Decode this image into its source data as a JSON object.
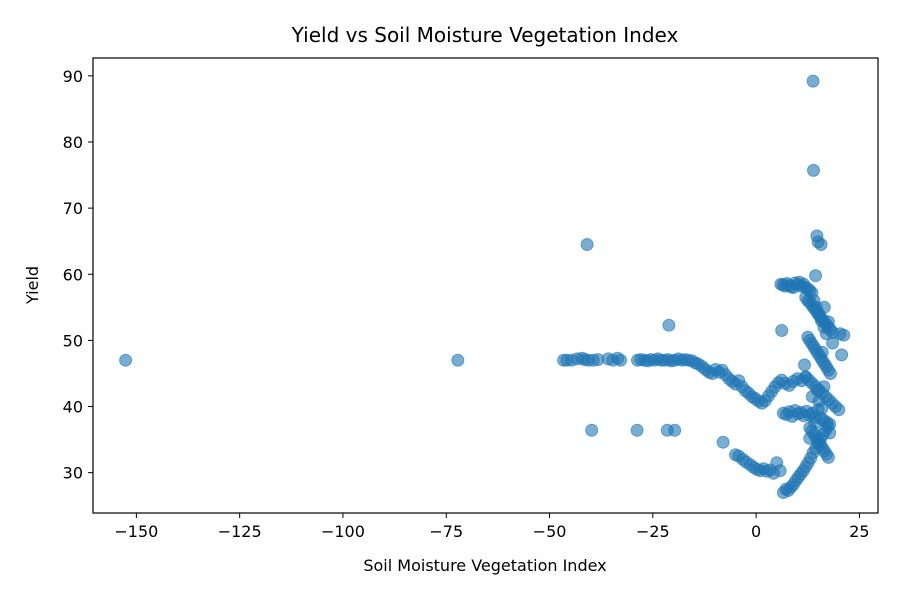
{
  "chart_data": {
    "type": "scatter",
    "title": "Yield vs Soil Moisture Vegetation Index",
    "xlabel": "Soil Moisture Vegetation Index",
    "ylabel": "Yield",
    "xlim": [
      -160.5,
      29.5
    ],
    "ylim": [
      23.9,
      92.7
    ],
    "xticks": [
      -150,
      -125,
      -100,
      -75,
      -50,
      -25,
      0,
      25
    ],
    "xtick_labels": [
      "−150",
      "−125",
      "−100",
      "−75",
      "−50",
      "−25",
      "0",
      "25"
    ],
    "yticks": [
      30,
      40,
      50,
      60,
      70,
      80,
      90
    ],
    "ytick_labels": [
      "30",
      "40",
      "50",
      "60",
      "70",
      "80",
      "90"
    ],
    "grid": false,
    "marker_color": "#1f77b4",
    "marker_alpha": 0.6,
    "x": [
      -152.6,
      -72.2,
      -46.6,
      -45.8,
      -44.6,
      -43.3,
      -42.1,
      -41.5,
      -40.6,
      -39.4,
      -38.3,
      -35.8,
      -34.7,
      -33.5,
      -32.8,
      -28.7,
      -27.9,
      -27.1,
      -26.3,
      -25.5,
      -24.6,
      -23.8,
      -23.0,
      -22.1,
      -21.3,
      -20.5,
      -19.7,
      -18.8,
      -18.0,
      -17.2,
      -16.4,
      -15.5,
      -14.7,
      -13.9,
      -13.0,
      -12.2,
      -11.4,
      -10.6,
      -9.8,
      -9.0,
      -8.2,
      -7.4,
      -6.6,
      -5.8,
      -5.0,
      -4.2,
      -3.4,
      -2.6,
      -1.8,
      -1.0,
      -0.2,
      0.6,
      1.4,
      2.2,
      3.0,
      3.8,
      4.6,
      5.4,
      6.2,
      7.0,
      8.0,
      9.0,
      10.0,
      11.0,
      12.0,
      -40.9,
      -21.1,
      6.2,
      -39.8,
      -28.8,
      -21.5,
      -19.7,
      -8.0,
      -5.0,
      -4.2,
      -3.2,
      -2.4,
      -1.4,
      -0.6,
      0.2,
      1.0,
      1.8,
      2.6,
      3.4,
      4.2,
      5.0,
      5.8,
      6.6,
      7.2,
      7.8,
      8.4,
      9.0,
      9.6,
      10.2,
      10.8,
      11.4,
      12.0,
      12.6,
      13.2,
      13.8,
      14.4,
      15.0,
      15.6,
      16.2,
      16.8,
      17.4,
      6.0,
      6.5,
      7.0,
      7.5,
      8.0,
      8.5,
      9.0,
      9.5,
      10.0,
      10.5,
      11.0,
      11.5,
      12.0,
      12.5,
      13.0,
      13.5,
      12.0,
      12.5,
      13.0,
      13.5,
      14.0,
      14.5,
      15.0,
      15.5,
      16.0,
      16.5,
      17.0,
      17.5,
      18.0,
      18.5,
      12.5,
      13.0,
      13.5,
      14.0,
      14.5,
      15.0,
      15.5,
      16.0,
      16.5,
      17.0,
      17.5,
      18.0,
      12.0,
      12.8,
      13.6,
      14.4,
      15.2,
      16.0,
      16.8,
      17.6,
      18.4,
      19.2,
      20.0,
      6.6,
      7.3,
      8.0,
      8.7,
      9.4,
      10.1,
      10.8,
      11.5,
      12.2,
      12.9,
      13.6,
      14.3,
      15.0,
      15.7,
      16.4,
      17.1,
      17.8,
      13.0,
      13.5,
      14.0,
      14.5,
      15.0,
      15.5,
      16.0,
      16.5,
      17.0,
      17.5,
      14.0,
      14.6,
      15.2,
      15.8,
      16.4,
      17.0,
      16.5,
      17.5,
      20.3,
      21.2,
      18.5,
      16.0,
      20.7,
      17.8,
      13.0,
      11.7,
      13.6,
      14.8,
      15.2,
      15.9,
      14.2,
      16.4,
      13.8,
      13.9,
      14.7,
      15.0,
      15.7,
      14.4
    ],
    "y": [
      47.0,
      47.0,
      47.0,
      47.0,
      47.0,
      47.2,
      47.3,
      47.1,
      47.0,
      47.0,
      47.1,
      47.2,
      47.0,
      47.3,
      47.0,
      47.0,
      47.1,
      47.0,
      46.9,
      47.1,
      47.0,
      47.2,
      47.0,
      47.0,
      47.1,
      46.9,
      47.0,
      47.2,
      47.0,
      47.1,
      47.0,
      46.9,
      46.6,
      46.4,
      46.0,
      45.6,
      45.2,
      45.0,
      45.6,
      45.2,
      45.5,
      44.8,
      44.2,
      43.8,
      43.4,
      43.9,
      43.0,
      42.4,
      42.0,
      41.5,
      41.2,
      40.8,
      40.5,
      40.9,
      41.6,
      42.3,
      43.0,
      43.6,
      44.0,
      43.5,
      43.2,
      43.8,
      44.2,
      43.9,
      44.4,
      64.5,
      52.3,
      51.5,
      36.4,
      36.4,
      36.4,
      36.4,
      34.6,
      32.7,
      32.5,
      32.0,
      31.6,
      31.2,
      30.8,
      30.5,
      30.3,
      30.6,
      30.2,
      30.4,
      29.9,
      31.5,
      30.3,
      27.0,
      27.5,
      27.3,
      27.8,
      28.2,
      28.8,
      29.3,
      29.8,
      30.3,
      30.9,
      31.5,
      32.2,
      33.0,
      33.7,
      34.4,
      35.1,
      35.8,
      36.4,
      37.0,
      58.5,
      58.4,
      58.2,
      58.6,
      58.3,
      58.1,
      58.0,
      58.7,
      58.4,
      58.8,
      58.2,
      58.5,
      58.0,
      57.8,
      57.5,
      57.2,
      56.5,
      56.0,
      55.8,
      55.3,
      54.9,
      54.5,
      54.0,
      53.6,
      53.2,
      52.8,
      52.4,
      52.0,
      51.6,
      51.2,
      50.5,
      50.0,
      49.5,
      49.0,
      48.5,
      48.0,
      47.5,
      47.0,
      46.5,
      46.0,
      45.5,
      45.0,
      44.5,
      44.0,
      43.5,
      43.0,
      42.5,
      42.0,
      41.5,
      41.0,
      40.5,
      40.0,
      39.5,
      39.0,
      38.8,
      39.2,
      38.5,
      39.4,
      38.9,
      39.1,
      38.6,
      39.3,
      38.7,
      39.0,
      38.4,
      39.5,
      38.2,
      37.9,
      37.6,
      37.3,
      36.8,
      36.3,
      35.8,
      35.3,
      34.8,
      34.3,
      33.8,
      33.3,
      32.8,
      32.3,
      56.0,
      55.0,
      54.0,
      53.0,
      52.0,
      51.0,
      55.0,
      52.8,
      51.0,
      50.8,
      49.6,
      48.2,
      47.8,
      36.0,
      35.2,
      46.3,
      41.5,
      42.5,
      40.8,
      39.7,
      37.5,
      43.0,
      89.2,
      75.7,
      65.8,
      64.9,
      64.5,
      59.8
    ]
  }
}
